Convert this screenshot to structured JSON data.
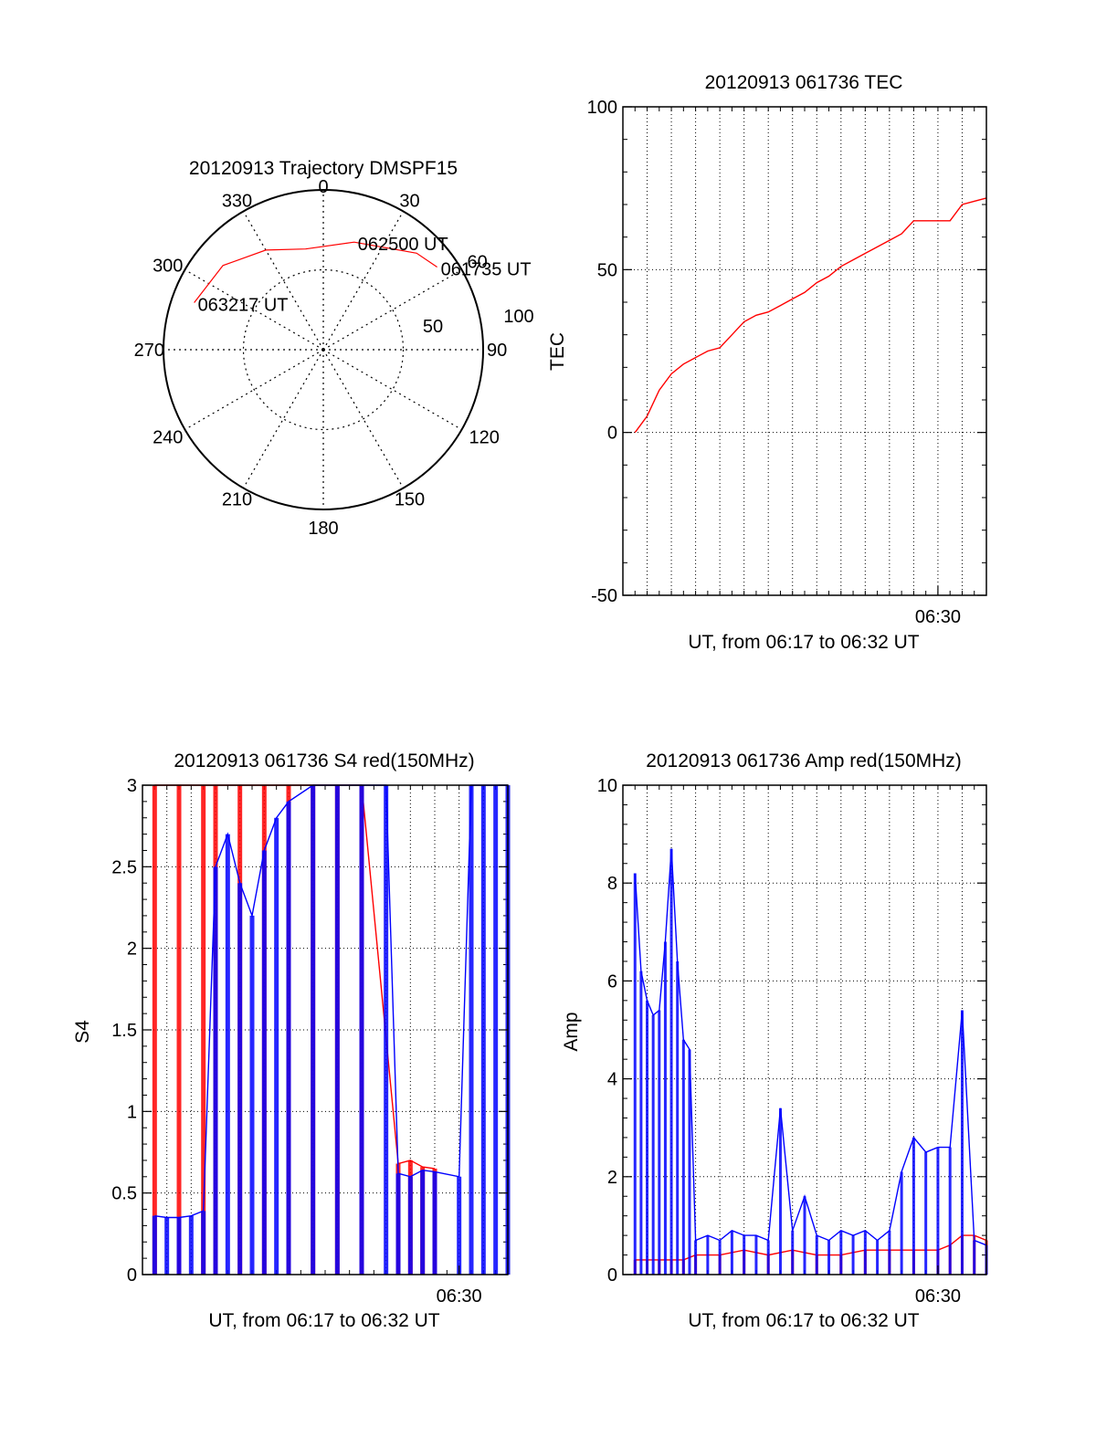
{
  "colors": {
    "red": "#ff0000",
    "blue": "#0000ff",
    "axis": "#000000",
    "grid": "#000000"
  },
  "chart_data": [
    {
      "id": "trajectory",
      "type": "polar",
      "title": "20120913 Trajectory DMSPF15",
      "angle_labels": [
        "0",
        "30",
        "60",
        "90",
        "120",
        "150",
        "180",
        "210",
        "240",
        "270",
        "300",
        "330"
      ],
      "radial_labels": [
        "50",
        "100"
      ],
      "rlim": [
        0,
        100
      ],
      "grid": true,
      "series": [
        {
          "color": "#ff0000",
          "points": [
            [
              88,
              54
            ],
            [
              84,
              44
            ],
            [
              70,
              16
            ],
            [
              64,
              -10
            ],
            [
              72,
              -30
            ],
            [
              82,
              -50
            ],
            [
              86,
              -70
            ]
          ]
        }
      ],
      "annotations": [
        {
          "text": "061735 UT",
          "az": 54,
          "r": 88
        },
        {
          "text": "062500 UT",
          "az": 16,
          "r": 70
        },
        {
          "text": "063217 UT",
          "az": -70,
          "r": 86
        }
      ]
    },
    {
      "id": "tec",
      "type": "line",
      "title": "20120913 061736 TEC",
      "xlabel": "UT, from 06:17 to 06:32 UT",
      "ylabel": "TEC",
      "xlim": [
        "06:17:00",
        "06:32:00"
      ],
      "ylim": [
        -50,
        100
      ],
      "yticks": [
        -50,
        0,
        50,
        100
      ],
      "xtick_labels": [
        {
          "x": "06:30",
          "label": "06:30"
        }
      ],
      "grid": true,
      "series": [
        {
          "color": "#ff0000",
          "x": [
            "06:17:30",
            "06:18:00",
            "06:18:30",
            "06:19:00",
            "06:19:30",
            "06:20:00",
            "06:20:30",
            "06:21:00",
            "06:21:30",
            "06:22:00",
            "06:22:30",
            "06:23:00",
            "06:23:30",
            "06:24:00",
            "06:24:30",
            "06:25:00",
            "06:25:30",
            "06:26:00",
            "06:26:30",
            "06:27:00",
            "06:27:30",
            "06:28:00",
            "06:28:30",
            "06:29:00",
            "06:29:30",
            "06:30:00",
            "06:30:30",
            "06:31:00",
            "06:31:30",
            "06:32:00"
          ],
          "values": [
            0,
            5,
            13,
            18,
            21,
            23,
            25,
            26,
            30,
            34,
            36,
            37,
            39,
            41,
            43,
            46,
            48,
            51,
            53,
            55,
            57,
            59,
            61,
            65,
            65,
            65,
            65,
            70,
            71,
            72
          ]
        }
      ]
    },
    {
      "id": "s4",
      "type": "line",
      "title": "20120913 061736 S4 red(150MHz)",
      "xlabel": "UT, from 06:17 to 06:32 UT",
      "ylabel": "S4",
      "xlim": [
        "06:17:00",
        "06:32:00"
      ],
      "ylim": [
        0,
        3
      ],
      "yticks": [
        0,
        0.5,
        1,
        1.5,
        2,
        2.5,
        3
      ],
      "ytick_labels": [
        "0",
        "0.5",
        "1",
        "1.5",
        "2",
        "2.5",
        "3"
      ],
      "xtick_labels": [
        {
          "x": "06:30",
          "label": "06:30"
        }
      ],
      "grid": true,
      "series": [
        {
          "color": "#ff0000",
          "x": [
            "06:17:30",
            "06:18:30",
            "06:19:30",
            "06:20:00",
            "06:21:00",
            "06:22:00",
            "06:23:00",
            "06:24:00",
            "06:25:00",
            "06:26:00",
            "06:27:30",
            "06:28:00",
            "06:28:30",
            "06:29:00"
          ],
          "values": [
            3,
            3,
            3,
            3,
            3,
            3,
            3,
            3,
            3,
            3,
            0.68,
            0.7,
            0.66,
            0.65
          ]
        },
        {
          "color": "#0000ff",
          "x": [
            "06:17:30",
            "06:18:00",
            "06:18:30",
            "06:19:00",
            "06:19:30",
            "06:20:00",
            "06:20:30",
            "06:21:00",
            "06:21:30",
            "06:22:00",
            "06:22:30",
            "06:23:00",
            "06:24:00",
            "06:25:00",
            "06:26:00",
            "06:27:00",
            "06:27:30",
            "06:28:00",
            "06:28:30",
            "06:29:00",
            "06:30:00",
            "06:30:30",
            "06:31:00",
            "06:31:30",
            "06:32:00"
          ],
          "values": [
            0.36,
            0.35,
            0.35,
            0.36,
            0.39,
            2.5,
            2.7,
            2.4,
            2.2,
            2.6,
            2.8,
            2.9,
            3,
            3,
            3,
            3,
            0.62,
            0.6,
            0.64,
            0.63,
            0.6,
            3,
            3,
            3,
            3
          ]
        }
      ]
    },
    {
      "id": "amp",
      "type": "line",
      "title": "20120913 061736 Amp red(150MHz)",
      "xlabel": "UT, from 06:17 to 06:32 UT",
      "ylabel": "Amp",
      "xlim": [
        "06:17:00",
        "06:32:00"
      ],
      "ylim": [
        0,
        10
      ],
      "yticks": [
        0,
        2,
        4,
        6,
        8,
        10
      ],
      "xtick_labels": [
        {
          "x": "06:30",
          "label": "06:30"
        }
      ],
      "grid": true,
      "series": [
        {
          "color": "#ff0000",
          "x": [
            "06:17:30",
            "06:18:00",
            "06:18:30",
            "06:19:00",
            "06:19:30",
            "06:20:00",
            "06:21:00",
            "06:22:00",
            "06:23:00",
            "06:24:00",
            "06:25:00",
            "06:26:00",
            "06:27:00",
            "06:28:00",
            "06:29:00",
            "06:30:00",
            "06:30:30",
            "06:31:00",
            "06:31:30",
            "06:32:00"
          ],
          "values": [
            0.3,
            0.3,
            0.3,
            0.3,
            0.3,
            0.4,
            0.4,
            0.5,
            0.4,
            0.5,
            0.4,
            0.4,
            0.5,
            0.5,
            0.5,
            0.5,
            0.6,
            0.8,
            0.8,
            0.7
          ]
        },
        {
          "color": "#0000ff",
          "x": [
            "06:17:30",
            "06:17:45",
            "06:18:00",
            "06:18:15",
            "06:18:30",
            "06:18:45",
            "06:19:00",
            "06:19:15",
            "06:19:30",
            "06:19:45",
            "06:20:00",
            "06:20:30",
            "06:21:00",
            "06:21:30",
            "06:22:00",
            "06:22:30",
            "06:23:00",
            "06:23:30",
            "06:24:00",
            "06:24:30",
            "06:25:00",
            "06:25:30",
            "06:26:00",
            "06:26:30",
            "06:27:00",
            "06:27:30",
            "06:28:00",
            "06:28:30",
            "06:29:00",
            "06:29:30",
            "06:30:00",
            "06:30:30",
            "06:31:00",
            "06:31:30",
            "06:32:00"
          ],
          "values": [
            8.2,
            6.2,
            5.6,
            5.3,
            5.4,
            6.8,
            8.7,
            6.4,
            4.8,
            4.6,
            0.7,
            0.8,
            0.7,
            0.9,
            0.8,
            0.8,
            0.7,
            3.4,
            0.9,
            1.6,
            0.8,
            0.7,
            0.9,
            0.8,
            0.9,
            0.7,
            0.9,
            2.1,
            2.8,
            2.5,
            2.6,
            2.6,
            5.4,
            0.7,
            0.6
          ]
        }
      ]
    }
  ]
}
